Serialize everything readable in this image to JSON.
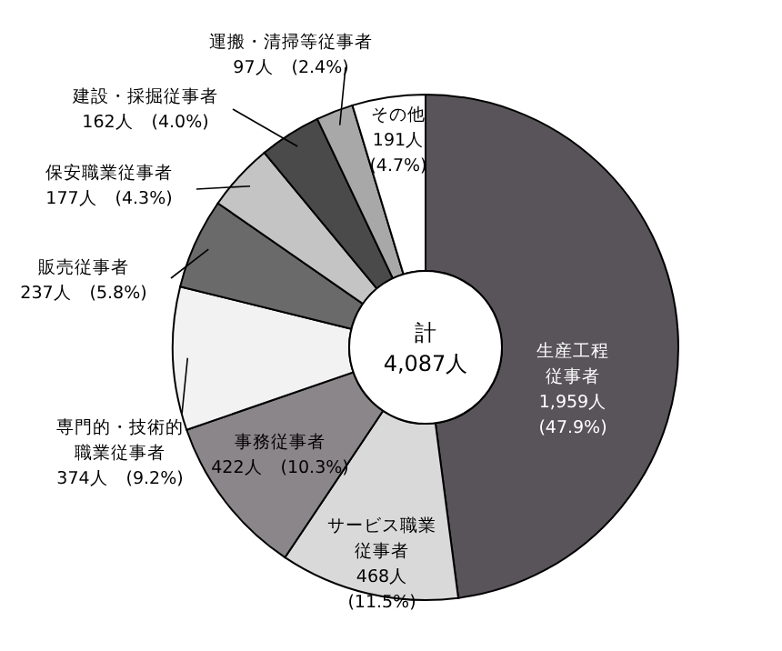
{
  "chart_data": {
    "type": "donut",
    "categories": [
      "生産工程従事者",
      "サービス職業従事者",
      "事務従事者",
      "専門的・技術的職業従事者",
      "販売従事者",
      "保安職業従事者",
      "建設・採掘従事者",
      "運搬・清掃等従事者",
      "その他"
    ],
    "values": [
      1959,
      468,
      422,
      374,
      237,
      177,
      162,
      97,
      191
    ],
    "value_labels": [
      "1,959人\n(47.9%)",
      "468人\n(11.5%)",
      "422人　(10.3%)",
      "374人　(9.2%)",
      "237人　(5.8%)",
      "177人　(4.3%)",
      "162人　(4.0%)",
      "97人　(2.4%)",
      "191人\n(4.7%)"
    ],
    "colors": [
      "#59545a",
      "#d9d9d9",
      "#8a868a",
      "#f2f2f2",
      "#6a6a6a",
      "#c4c4c4",
      "#4a4a4a",
      "#a8a8a8",
      "#ffffff"
    ],
    "annotations": [
      "計\n4,087人"
    ]
  }
}
